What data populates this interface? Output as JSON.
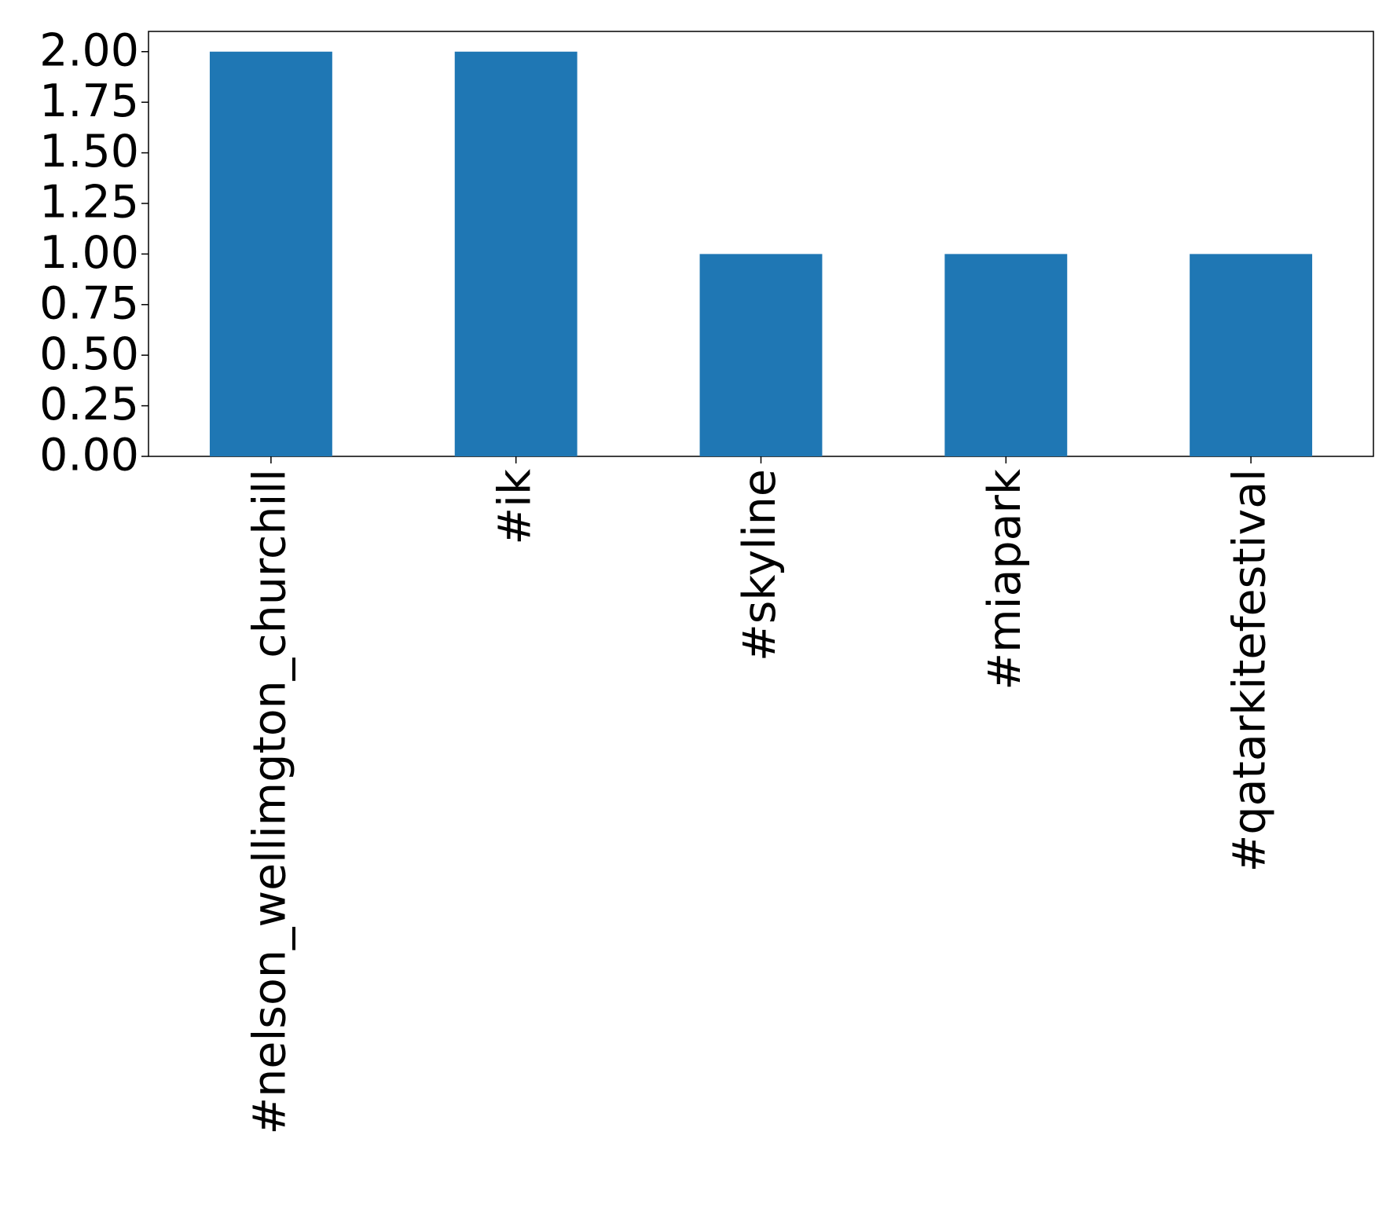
{
  "chart_data": {
    "type": "bar",
    "categories": [
      "#nelson_wellimgton_churchill",
      "#ik",
      "#skyline",
      "#miapark",
      "#qatarkitefestival"
    ],
    "values": [
      2,
      2,
      1,
      1,
      1
    ],
    "color": "#1f77b4",
    "ylim": [
      0,
      2.1
    ],
    "yticks": [
      {
        "value": 0,
        "label": "0.00"
      },
      {
        "value": 0.25,
        "label": "0.25"
      },
      {
        "value": 0.5,
        "label": "0.50"
      },
      {
        "value": 0.75,
        "label": "0.75"
      },
      {
        "value": 1,
        "label": "1.00"
      },
      {
        "value": 1.25,
        "label": "1.25"
      },
      {
        "value": 1.5,
        "label": "1.50"
      },
      {
        "value": 1.75,
        "label": "1.75"
      },
      {
        "value": 2,
        "label": "2.00"
      }
    ],
    "grid": false
  }
}
